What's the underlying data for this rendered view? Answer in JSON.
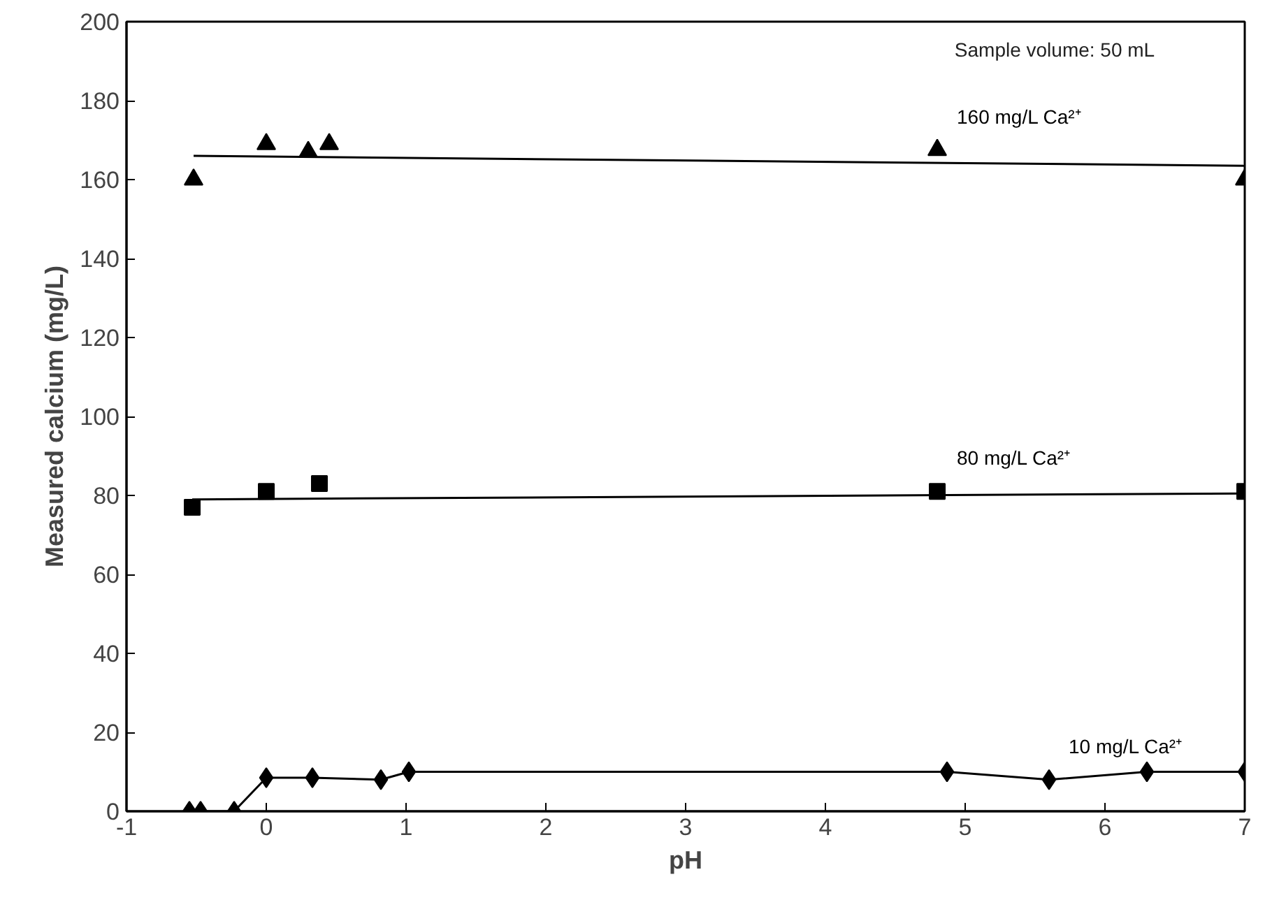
{
  "chart_data": {
    "type": "scatter",
    "xlabel": "pH",
    "ylabel": "Measured calcium (mg/L)",
    "xlim": [
      -1,
      7
    ],
    "xticks": [
      -1,
      0,
      1,
      2,
      3,
      4,
      5,
      6,
      7
    ],
    "ylim": [
      0,
      200
    ],
    "yticks": [
      0,
      20,
      40,
      60,
      80,
      100,
      120,
      140,
      160,
      180,
      200
    ],
    "grid": false,
    "annotations": [
      "Sample volume: 50 mL"
    ],
    "series": [
      {
        "name": "160 mg/L Ca²⁺",
        "marker": "triangle",
        "color": "#000000",
        "x": [
          -0.52,
          0,
          0.3,
          0.45,
          4.8,
          7
        ],
        "values": [
          160,
          169,
          167,
          169,
          167.5,
          160
        ]
      },
      {
        "type": "line",
        "marker": "none",
        "color": "#000000",
        "x": [
          -0.52,
          7
        ],
        "values": [
          166,
          163.5
        ]
      },
      {
        "name": "80 mg/L Ca²⁺",
        "marker": "square",
        "color": "#000000",
        "x": [
          -0.53,
          0,
          0.38,
          4.8,
          7
        ],
        "values": [
          77,
          81,
          83,
          81,
          81
        ]
      },
      {
        "type": "line",
        "marker": "none",
        "color": "#000000",
        "x": [
          -0.53,
          7
        ],
        "values": [
          79,
          80.5
        ]
      },
      {
        "name": "10 mg/L Ca²⁺",
        "type": "line",
        "marker": "diamond",
        "color": "#000000",
        "x": [
          -0.55,
          -0.47,
          -0.23,
          0,
          0.33,
          0.82,
          1.02,
          4.87,
          5.6,
          6.3,
          7
        ],
        "values": [
          0,
          0,
          0,
          8.5,
          8.5,
          8,
          10,
          10,
          8,
          10,
          10
        ]
      }
    ]
  }
}
